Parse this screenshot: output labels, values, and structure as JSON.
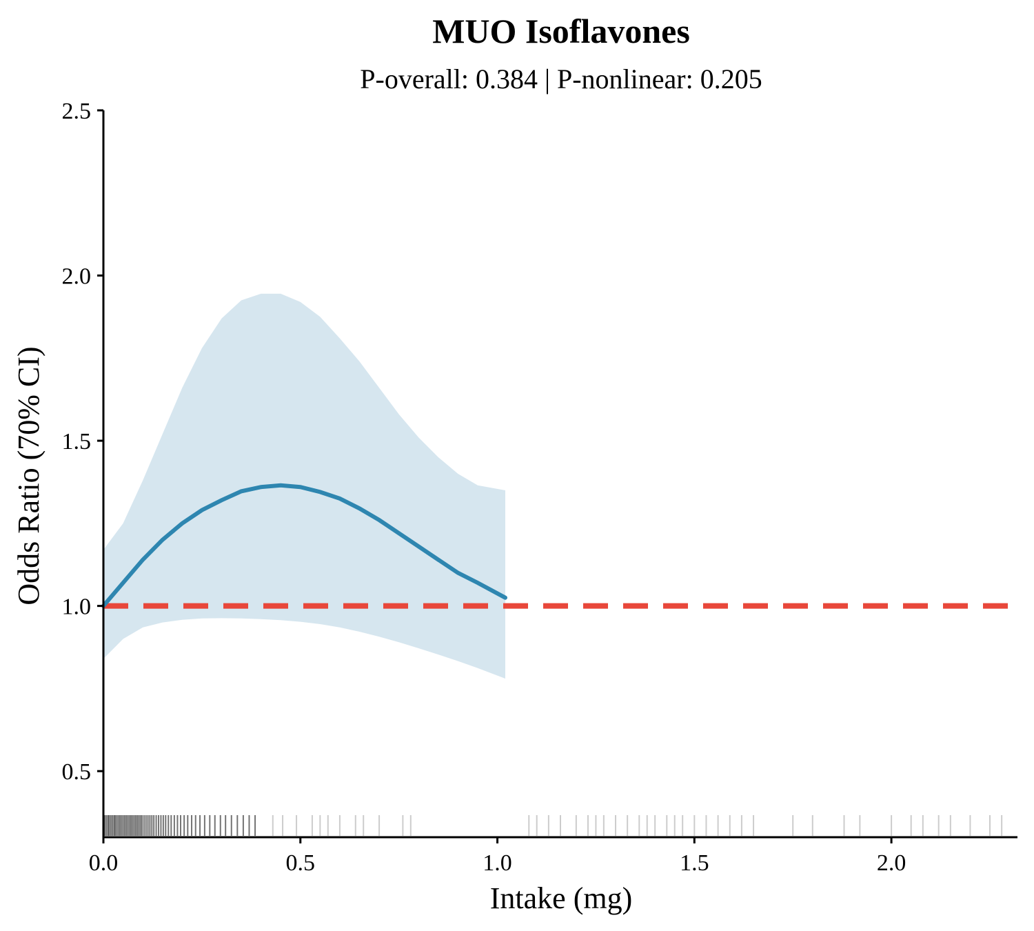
{
  "chart_data": {
    "type": "line",
    "title": "MUO Isoflavones",
    "subtitle": "P-overall: 0.384 | P-nonlinear: 0.205",
    "xlabel": "Intake (mg)",
    "ylabel": "Odds Ratio (70% CI)",
    "xlim": [
      0.0,
      2.32
    ],
    "ylim": [
      0.3,
      2.5
    ],
    "xticks": [
      "0.0",
      "0.5",
      "1.0",
      "1.5",
      "2.0"
    ],
    "yticks": [
      "0.5",
      "1.0",
      "1.5",
      "2.0",
      "2.5"
    ],
    "reference_line": {
      "y": 1.0,
      "style": "dashed",
      "color": "#e8473a"
    },
    "series": [
      {
        "x": [
          0.0,
          0.05,
          0.1,
          0.15,
          0.2,
          0.25,
          0.3,
          0.35,
          0.4,
          0.45,
          0.5,
          0.55,
          0.6,
          0.65,
          0.7,
          0.75,
          0.8,
          0.85,
          0.9,
          0.95,
          1.02
        ],
        "y": [
          1.0,
          1.07,
          1.14,
          1.2,
          1.25,
          1.29,
          1.32,
          1.347,
          1.36,
          1.365,
          1.36,
          1.345,
          1.325,
          1.295,
          1.26,
          1.22,
          1.18,
          1.14,
          1.1,
          1.07,
          1.025
        ],
        "lower": [
          0.84,
          0.9,
          0.935,
          0.95,
          0.958,
          0.962,
          0.963,
          0.962,
          0.96,
          0.957,
          0.952,
          0.945,
          0.935,
          0.922,
          0.907,
          0.89,
          0.872,
          0.853,
          0.833,
          0.812,
          0.78
        ],
        "upper": [
          1.17,
          1.25,
          1.38,
          1.52,
          1.66,
          1.78,
          1.87,
          1.925,
          1.945,
          1.945,
          1.92,
          1.875,
          1.81,
          1.74,
          1.66,
          1.58,
          1.51,
          1.45,
          1.4,
          1.365,
          1.35
        ],
        "color": "#2e86b0",
        "band_color": "#d6e6ef"
      }
    ],
    "rug": [
      0.001,
      0.004,
      0.008,
      0.012,
      0.015,
      0.019,
      0.023,
      0.027,
      0.03,
      0.034,
      0.038,
      0.042,
      0.046,
      0.05,
      0.054,
      0.058,
      0.062,
      0.066,
      0.07,
      0.074,
      0.078,
      0.082,
      0.086,
      0.09,
      0.094,
      0.098,
      0.103,
      0.108,
      0.113,
      0.118,
      0.123,
      0.128,
      0.134,
      0.14,
      0.146,
      0.152,
      0.158,
      0.165,
      0.172,
      0.18,
      0.188,
      0.196,
      0.205,
      0.214,
      0.224,
      0.234,
      0.245,
      0.257,
      0.27,
      0.283,
      0.297,
      0.31,
      0.325,
      0.34,
      0.355,
      0.37,
      0.385,
      0.43,
      0.455,
      0.49,
      0.53,
      0.55,
      0.57,
      0.6,
      0.64,
      0.66,
      0.7,
      0.76,
      0.78,
      1.08,
      1.1,
      1.13,
      1.16,
      1.2,
      1.23,
      1.25,
      1.27,
      1.3,
      1.33,
      1.36,
      1.38,
      1.4,
      1.43,
      1.45,
      1.47,
      1.5,
      1.53,
      1.56,
      1.59,
      1.62,
      1.65,
      1.75,
      1.8,
      1.88,
      1.92,
      2.0,
      2.05,
      2.08,
      2.12,
      2.15,
      2.2,
      2.25,
      2.28
    ],
    "rug_color": "#000000"
  }
}
